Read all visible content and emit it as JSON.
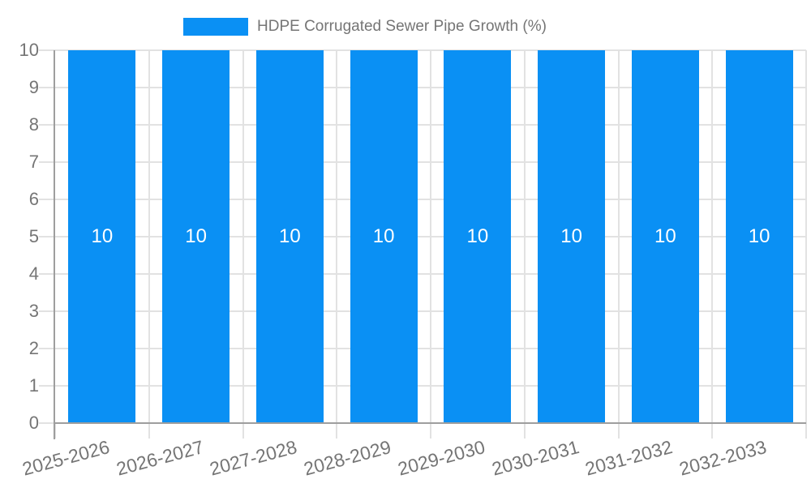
{
  "legend": {
    "label": "HDPE Corrugated Sewer Pipe Growth (%)"
  },
  "chart_data": {
    "type": "bar",
    "title": "HDPE Corrugated Sewer Pipe Growth (%)",
    "categories": [
      "2025-2026",
      "2026-2027",
      "2027-2028",
      "2028-2029",
      "2029-2030",
      "2030-2031",
      "2031-2032",
      "2032-2033"
    ],
    "series": [
      {
        "name": "HDPE Corrugated Sewer Pipe Growth (%)",
        "values": [
          10,
          10,
          10,
          10,
          10,
          10,
          10,
          10
        ]
      }
    ],
    "bar_value_labels": [
      "10",
      "10",
      "10",
      "10",
      "10",
      "10",
      "10",
      "10"
    ],
    "y_tick_labels": [
      "0",
      "1",
      "2",
      "3",
      "4",
      "5",
      "6",
      "7",
      "8",
      "9",
      "10"
    ],
    "xlabel": "",
    "ylabel": "",
    "ylim": [
      0,
      10
    ],
    "ytick_step": 1,
    "grid": true,
    "legend_position": "top",
    "x_label_rotation_deg": -15,
    "colors": {
      "bar": "#0a90f4",
      "axis_text": "#757575",
      "grid_line": "#e2e2e2",
      "axis_line": "#9e9e9e",
      "bar_label": "#ffffff",
      "background": "#ffffff"
    }
  }
}
